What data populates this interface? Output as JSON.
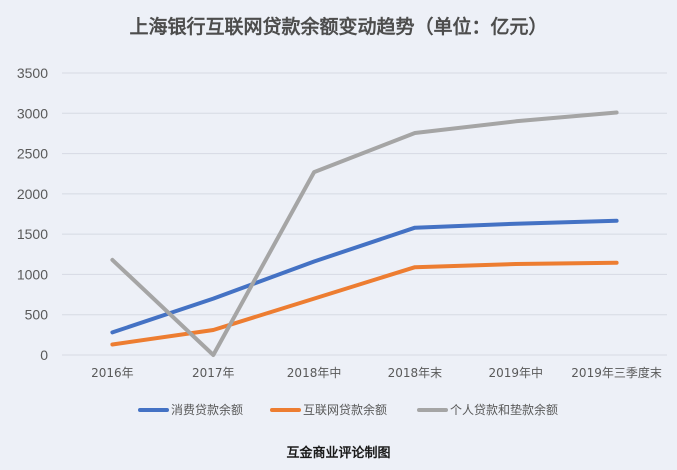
{
  "footer": "互金商业评论制图",
  "chart_data": {
    "type": "line",
    "title": "上海银行互联网贷款余额变动趋势（单位：亿元）",
    "xlabel": "",
    "ylabel": "",
    "categories": [
      "2016年",
      "2017年",
      "2018年中",
      "2018年末",
      "2019年中",
      "2019年三季度末"
    ],
    "ylim": [
      0,
      3500
    ],
    "yticks": [
      "0",
      "500",
      "1000",
      "1500",
      "2000",
      "2500",
      "3000",
      "3500"
    ],
    "grid": true,
    "legend_position": "bottom",
    "series": [
      {
        "name": "消费贷款余额",
        "color": "#4472c4",
        "values": [
          280,
          700,
          1160,
          1580,
          1630,
          1665
        ]
      },
      {
        "name": "互联网贷款余额",
        "color": "#ed7d31",
        "values": [
          130,
          310,
          700,
          1090,
          1130,
          1145
        ]
      },
      {
        "name": "个人贷款和垫款余额",
        "color": "#a5a5a5",
        "values": [
          1180,
          0,
          2270,
          2755,
          2900,
          3010
        ]
      }
    ]
  }
}
